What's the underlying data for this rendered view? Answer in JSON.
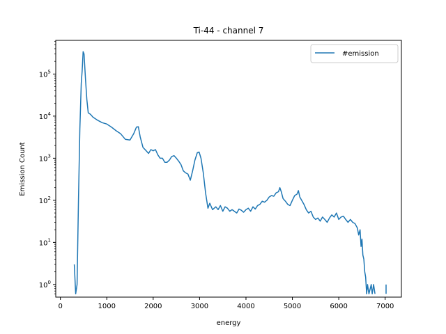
{
  "chart_data": {
    "type": "line",
    "title": "Ti-44 - channel 7",
    "xlabel": "energy",
    "ylabel": "Emission Count",
    "xlim": [
      -100,
      7350
    ],
    "ylim_log10": [
      -0.3,
      5.8
    ],
    "yscale": "log",
    "grid": false,
    "legend_position": "top-right",
    "x_ticks": [
      {
        "value": 0,
        "label": "0"
      },
      {
        "value": 1000,
        "label": "1000"
      },
      {
        "value": 2000,
        "label": "2000"
      },
      {
        "value": 3000,
        "label": "3000"
      },
      {
        "value": 4000,
        "label": "4000"
      },
      {
        "value": 5000,
        "label": "5000"
      },
      {
        "value": 6000,
        "label": "6000"
      },
      {
        "value": 7000,
        "label": "7000"
      }
    ],
    "y_ticks": [
      {
        "exp": 0,
        "base": "10",
        "sup": "0"
      },
      {
        "exp": 1,
        "base": "10",
        "sup": "1"
      },
      {
        "exp": 2,
        "base": "10",
        "sup": "2"
      },
      {
        "exp": 3,
        "base": "10",
        "sup": "3"
      },
      {
        "exp": 4,
        "base": "10",
        "sup": "4"
      },
      {
        "exp": 5,
        "base": "10",
        "sup": "5"
      }
    ],
    "series": [
      {
        "name": "#emission",
        "color": "#1f77b4",
        "points": [
          [
            300,
            3
          ],
          [
            330,
            0.6
          ],
          [
            360,
            1
          ],
          [
            390,
            100
          ],
          [
            420,
            5000
          ],
          [
            450,
            60000
          ],
          [
            470,
            120000
          ],
          [
            490,
            340000
          ],
          [
            510,
            300000
          ],
          [
            540,
            80000
          ],
          [
            570,
            25000
          ],
          [
            600,
            12000
          ],
          [
            650,
            11000
          ],
          [
            700,
            9500
          ],
          [
            800,
            8000
          ],
          [
            900,
            7000
          ],
          [
            1000,
            6500
          ],
          [
            1100,
            5500
          ],
          [
            1200,
            4500
          ],
          [
            1300,
            3800
          ],
          [
            1400,
            2800
          ],
          [
            1500,
            2700
          ],
          [
            1580,
            3800
          ],
          [
            1640,
            5500
          ],
          [
            1680,
            5600
          ],
          [
            1720,
            3200
          ],
          [
            1780,
            1800
          ],
          [
            1850,
            1500
          ],
          [
            1900,
            1300
          ],
          [
            1950,
            1600
          ],
          [
            2000,
            1500
          ],
          [
            2050,
            1600
          ],
          [
            2100,
            1200
          ],
          [
            2150,
            1000
          ],
          [
            2200,
            1000
          ],
          [
            2250,
            800
          ],
          [
            2300,
            800
          ],
          [
            2350,
            900
          ],
          [
            2400,
            1100
          ],
          [
            2450,
            1150
          ],
          [
            2500,
            1000
          ],
          [
            2550,
            850
          ],
          [
            2600,
            700
          ],
          [
            2650,
            500
          ],
          [
            2700,
            450
          ],
          [
            2750,
            420
          ],
          [
            2800,
            300
          ],
          [
            2850,
            500
          ],
          [
            2900,
            900
          ],
          [
            2950,
            1350
          ],
          [
            2990,
            1400
          ],
          [
            3030,
            1000
          ],
          [
            3080,
            450
          ],
          [
            3130,
            150
          ],
          [
            3180,
            65
          ],
          [
            3220,
            85
          ],
          [
            3280,
            60
          ],
          [
            3350,
            70
          ],
          [
            3400,
            60
          ],
          [
            3450,
            75
          ],
          [
            3500,
            55
          ],
          [
            3550,
            70
          ],
          [
            3600,
            65
          ],
          [
            3650,
            55
          ],
          [
            3700,
            60
          ],
          [
            3750,
            55
          ],
          [
            3800,
            50
          ],
          [
            3850,
            62
          ],
          [
            3900,
            58
          ],
          [
            3950,
            52
          ],
          [
            4000,
            60
          ],
          [
            4050,
            65
          ],
          [
            4100,
            55
          ],
          [
            4150,
            70
          ],
          [
            4200,
            62
          ],
          [
            4250,
            75
          ],
          [
            4300,
            80
          ],
          [
            4350,
            95
          ],
          [
            4400,
            90
          ],
          [
            4450,
            100
          ],
          [
            4500,
            120
          ],
          [
            4550,
            130
          ],
          [
            4600,
            125
          ],
          [
            4650,
            150
          ],
          [
            4700,
            160
          ],
          [
            4730,
            200
          ],
          [
            4760,
            160
          ],
          [
            4800,
            110
          ],
          [
            4850,
            95
          ],
          [
            4900,
            80
          ],
          [
            4950,
            75
          ],
          [
            5000,
            100
          ],
          [
            5050,
            130
          ],
          [
            5100,
            140
          ],
          [
            5130,
            170
          ],
          [
            5160,
            120
          ],
          [
            5200,
            100
          ],
          [
            5250,
            80
          ],
          [
            5300,
            60
          ],
          [
            5350,
            50
          ],
          [
            5400,
            55
          ],
          [
            5450,
            40
          ],
          [
            5500,
            35
          ],
          [
            5550,
            38
          ],
          [
            5600,
            32
          ],
          [
            5650,
            40
          ],
          [
            5700,
            35
          ],
          [
            5750,
            30
          ],
          [
            5800,
            38
          ],
          [
            5850,
            45
          ],
          [
            5900,
            40
          ],
          [
            5950,
            50
          ],
          [
            6000,
            35
          ],
          [
            6050,
            40
          ],
          [
            6100,
            42
          ],
          [
            6150,
            35
          ],
          [
            6200,
            30
          ],
          [
            6250,
            35
          ],
          [
            6300,
            30
          ],
          [
            6350,
            28
          ],
          [
            6400,
            22
          ],
          [
            6430,
            15
          ],
          [
            6460,
            20
          ],
          [
            6480,
            8
          ],
          [
            6500,
            12
          ],
          [
            6520,
            5
          ],
          [
            6540,
            4
          ],
          [
            6560,
            2
          ],
          [
            6580,
            1.5
          ],
          [
            6600,
            0.6
          ],
          [
            6620,
            1
          ],
          [
            6650,
            0.6
          ],
          [
            6700,
            1
          ],
          [
            6720,
            0.6
          ],
          [
            6750,
            1
          ],
          [
            6780,
            0.6
          ]
        ]
      },
      {
        "name": "",
        "color": "#1f77b4",
        "points": [
          [
            7020,
            1
          ],
          [
            7020,
            0.6
          ]
        ]
      }
    ]
  }
}
